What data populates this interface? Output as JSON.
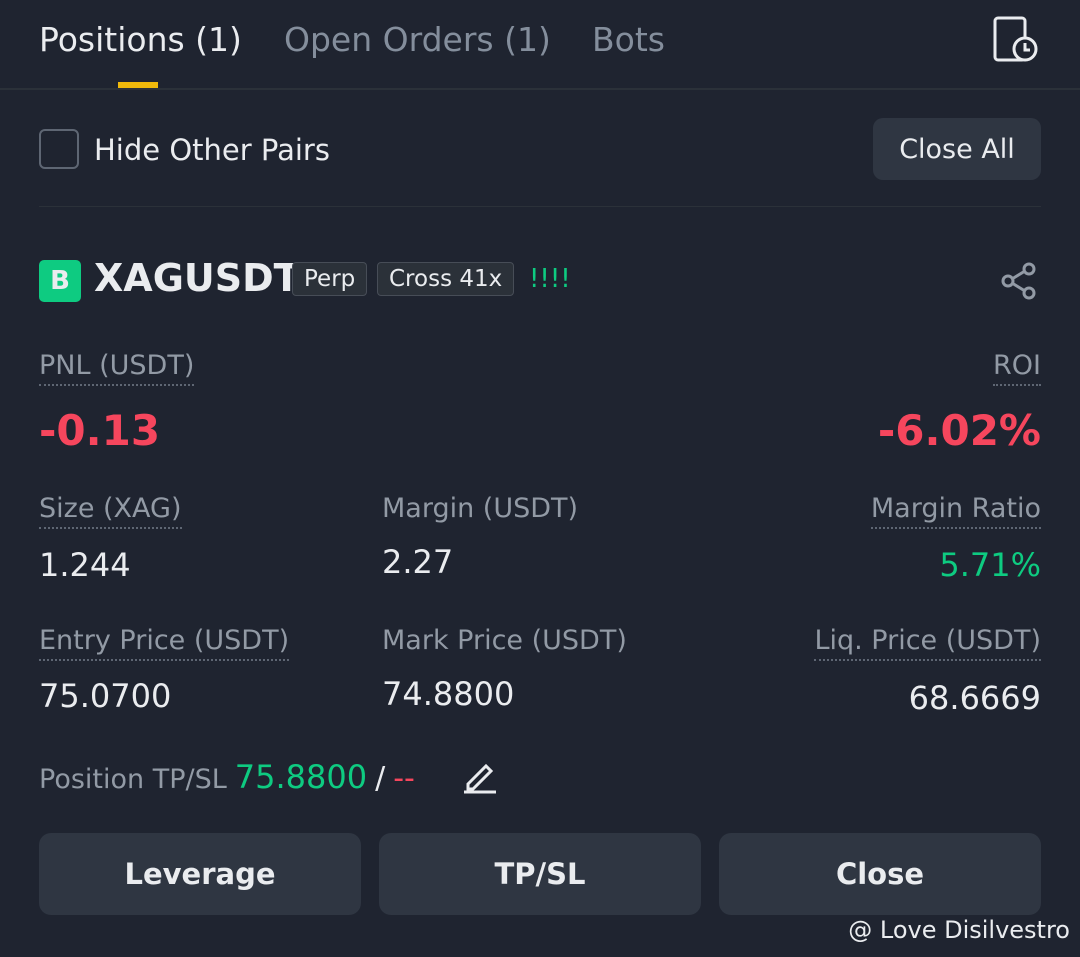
{
  "tabs": [
    "Positions (1)",
    "Open Orders (1)",
    "Bots"
  ],
  "filter": {
    "label": "Hide Other Pairs",
    "button": "Close All"
  },
  "position": {
    "badge": "B",
    "symbol": "XAGUSDT",
    "tags": [
      "Perp",
      "Cross 41x"
    ],
    "signal": "!!!!",
    "pnl": {
      "label": "PNL (USDT)",
      "value": "-0.13"
    },
    "roi": {
      "label": "ROI",
      "value": "-6.02%"
    },
    "fields": [
      {
        "label": "Size (XAG)",
        "value": "1.244"
      },
      {
        "label": "Margin (USDT)",
        "value": "2.27"
      },
      {
        "label": "Margin Ratio",
        "value": "5.71%"
      },
      {
        "label": "Entry Price (USDT)",
        "value": "75.0700"
      },
      {
        "label": "Mark Price (USDT)",
        "value": "74.8800"
      },
      {
        "label": "Liq. Price (USDT)",
        "value": "68.6669"
      }
    ],
    "tpsl": {
      "label": "Position TP/SL",
      "tp": "75.8800",
      "separator": "/",
      "sl": "--"
    },
    "actions": [
      "Leverage",
      "TP/SL",
      "Close"
    ]
  },
  "watermark": "@ Love Disilvestro"
}
